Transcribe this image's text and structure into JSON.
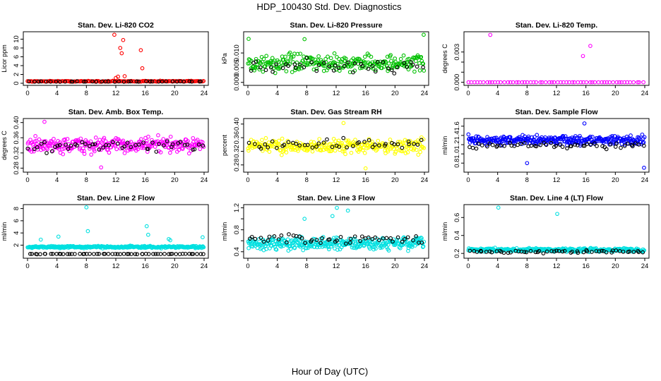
{
  "figure": {
    "title": "HDP_100430  Std. Dev. Diagnostics",
    "xlabel": "Hour of Day (UTC)"
  },
  "chart_data": [
    {
      "type": "scatter",
      "title": "Stan. Dev. Li-820 CO2",
      "ylabel": "Licor ppm",
      "xlim": [
        0,
        24
      ],
      "ylim": [
        0,
        11.2
      ],
      "xticks": [
        0,
        4,
        8,
        12,
        16,
        20,
        24
      ],
      "yticks": [
        0,
        2,
        4,
        6,
        8,
        10
      ],
      "ytick_labels": [
        "0",
        "2",
        "4",
        "6",
        "8",
        "10"
      ],
      "color": "#ff0000",
      "base": 0.45,
      "spread": 0.15,
      "n": 160,
      "extra_x": [
        11.8,
        12.0,
        12.3,
        12.6,
        12.8,
        13.0,
        13.2,
        15.4,
        15.6
      ],
      "extra_y": [
        11.0,
        1.2,
        1.5,
        8.0,
        6.8,
        9.8,
        1.6,
        7.5,
        3.4
      ],
      "ref_base": 0.4,
      "ref_spread": 0.1,
      "ref_n": 40
    },
    {
      "type": "scatter",
      "title": "Stan. Dev. Li-820 Pressure",
      "ylabel": "kPa",
      "xlim": [
        0,
        24
      ],
      "ylim": [
        -0.0003,
        0.0165
      ],
      "xticks": [
        0,
        4,
        8,
        12,
        16,
        20,
        24
      ],
      "yticks": [
        0,
        0.005,
        0.01
      ],
      "ytick_labels": [
        "0.000",
        "0.005",
        "0.010"
      ],
      "color": "#00c000",
      "base": 0.0065,
      "spread": 0.0042,
      "n": 260,
      "extra_x": [
        0.1,
        7.7,
        23.9
      ],
      "extra_y": [
        0.0148,
        0.0147,
        0.0162
      ],
      "ref_base": 0.0055,
      "ref_spread": 0.003,
      "ref_n": 45
    },
    {
      "type": "scatter",
      "title": "Stan. Dev. Li-820 Temp.",
      "ylabel": "degrees C",
      "xlim": [
        0,
        24
      ],
      "ylim": [
        -0.0001,
        0.0048
      ],
      "xticks": [
        0,
        4,
        8,
        12,
        16,
        20,
        24
      ],
      "yticks": [
        0,
        0.001,
        0.002,
        0.003
      ],
      "ytick_labels": [
        "0.000",
        "",
        "",
        "0.003"
      ],
      "color": "#ff00ff",
      "base": 0.0,
      "spread": 0.0,
      "n": 60,
      "extra_x": [
        3.0,
        15.6,
        16.6
      ],
      "extra_y": [
        0.0047,
        0.0026,
        0.0036
      ],
      "ref_base": 0.0,
      "ref_spread": 0.0,
      "ref_n": 0
    },
    {
      "type": "scatter",
      "title": "Stan. Dev. Amb. Box Temp.",
      "ylabel": "degrees C",
      "xlim": [
        0,
        24
      ],
      "ylim": [
        0.275,
        0.405
      ],
      "xticks": [
        0,
        4,
        8,
        12,
        16,
        20,
        24
      ],
      "yticks": [
        0.28,
        0.32,
        0.36,
        0.4
      ],
      "ytick_labels": [
        "0.28",
        "0.32",
        "0.36",
        "0.40"
      ],
      "color": "#ff00ff",
      "base": 0.34,
      "spread": 0.03,
      "n": 280,
      "extra_x": [
        10.0,
        2.3
      ],
      "extra_y": [
        0.282,
        0.402
      ],
      "ref_base": 0.338,
      "ref_spread": 0.022,
      "ref_n": 50
    },
    {
      "type": "scatter",
      "title": "Stan. Dev. Gas Stream RH",
      "ylabel": "percent",
      "xlim": [
        0,
        24
      ],
      "ylim": [
        0.265,
        0.41
      ],
      "xticks": [
        0,
        4,
        8,
        12,
        16,
        20,
        24
      ],
      "yticks": [
        0.28,
        0.32,
        0.36,
        0.4
      ],
      "ytick_labels": [
        "0.28",
        "0.32",
        "0.36",
        "0.40"
      ],
      "color": "#ffff00",
      "base": 0.335,
      "spread": 0.03,
      "n": 280,
      "extra_x": [
        13.0,
        16.0
      ],
      "extra_y": [
        0.403,
        0.27
      ],
      "ref_base": 0.34,
      "ref_spread": 0.022,
      "ref_n": 45
    },
    {
      "type": "scatter",
      "title": "Stan. Dev. Sample Flow",
      "ylabel": "ml/min",
      "xlim": [
        0,
        24
      ],
      "ylim": [
        0.65,
        1.72
      ],
      "xticks": [
        0,
        4,
        8,
        12,
        16,
        20,
        24
      ],
      "yticks": [
        0.8,
        1.0,
        1.2,
        1.4,
        1.6
      ],
      "ytick_labels": [
        "0.8",
        "1.0",
        "1.2",
        "1.4",
        "1.6"
      ],
      "color": "#0000ff",
      "base": 1.3,
      "spread": 0.14,
      "n": 320,
      "extra_x": [
        8.0,
        23.9,
        15.8
      ],
      "extra_y": [
        0.8,
        0.7,
        1.66
      ],
      "ref_base": 1.18,
      "ref_spread": 0.1,
      "ref_n": 55
    },
    {
      "type": "scatter",
      "title": "Stan. Dev. Line 2 Flow",
      "ylabel": "ml/min",
      "xlim": [
        0,
        24
      ],
      "ylim": [
        0.2,
        8.3
      ],
      "xticks": [
        0,
        4,
        8,
        12,
        16,
        20,
        24
      ],
      "yticks": [
        2,
        4,
        6,
        8
      ],
      "ytick_labels": [
        "2",
        "4",
        "6",
        "8"
      ],
      "color": "#00e0e0",
      "base": 1.7,
      "spread": 0.25,
      "n": 320,
      "extra_x": [
        1.8,
        4.2,
        8.0,
        8.2,
        16.2,
        16.4,
        19.2,
        19.4,
        23.8
      ],
      "extra_y": [
        2.9,
        3.4,
        8.2,
        4.3,
        5.1,
        3.7,
        3.0,
        2.8,
        3.3
      ],
      "ref_base": 0.55,
      "ref_spread": 0.05,
      "ref_n": 60
    },
    {
      "type": "scatter",
      "title": "Stan. Dev. Line 3 Flow",
      "ylabel": "ml/min",
      "xlim": [
        0,
        24
      ],
      "ylim": [
        0.32,
        1.22
      ],
      "xticks": [
        0,
        4,
        8,
        12,
        16,
        20,
        24
      ],
      "yticks": [
        0.4,
        0.6,
        0.8,
        1.0,
        1.2
      ],
      "ytick_labels": [
        "0.4",
        "",
        "0.8",
        "",
        "1.2"
      ],
      "color": "#00e0e0",
      "base": 0.55,
      "spread": 0.16,
      "n": 340,
      "extra_x": [
        12.1,
        13.6,
        7.7,
        11.5
      ],
      "extra_y": [
        1.2,
        1.15,
        1.0,
        1.05
      ],
      "ref_base": 0.62,
      "ref_spread": 0.12,
      "ref_n": 50
    },
    {
      "type": "scatter",
      "title": "Stan. Dev. Line 4 (LT) Flow",
      "ylabel": "ml/min",
      "xlim": [
        0,
        24
      ],
      "ylim": [
        0.17,
        0.72
      ],
      "xticks": [
        0,
        4,
        8,
        12,
        16,
        20,
        24
      ],
      "yticks": [
        0.2,
        0.4,
        0.6
      ],
      "ytick_labels": [
        "0.2",
        "0.4",
        "0.6"
      ],
      "color": "#00e0e0",
      "base": 0.24,
      "spread": 0.03,
      "n": 300,
      "extra_x": [
        4.1,
        12.1
      ],
      "extra_y": [
        0.71,
        0.64
      ],
      "ref_base": 0.22,
      "ref_spread": 0.02,
      "ref_n": 55
    }
  ]
}
